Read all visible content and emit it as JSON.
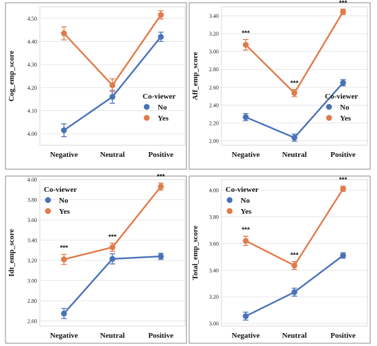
{
  "chart_data": [
    {
      "type": "line",
      "ylabel": "Cog_emp_score",
      "categories": [
        "Negative",
        "Neutral",
        "Positive"
      ],
      "ylim": [
        3.95,
        4.55
      ],
      "yticks": [
        "4.00",
        "4.10",
        "4.20",
        "4.30",
        "4.40",
        "4.50"
      ],
      "legend": {
        "title": "Co-viewer",
        "placement": "lower-right"
      },
      "series": [
        {
          "name": "No",
          "color": "#4a72b8",
          "values": [
            4.015,
            4.16,
            4.42
          ],
          "errors": [
            0.028,
            0.028,
            0.02
          ]
        },
        {
          "name": "Yes",
          "color": "#e07b4a",
          "values": [
            4.435,
            4.21,
            4.515
          ],
          "errors": [
            0.028,
            0.028,
            0.018
          ]
        }
      ],
      "annotations": []
    },
    {
      "type": "line",
      "ylabel": "Aff_emp_score",
      "categories": [
        "Negative",
        "Neutral",
        "Positive"
      ],
      "ylim": [
        1.95,
        3.5
      ],
      "yticks": [
        "2.00",
        "2.20",
        "2.40",
        "2.60",
        "2.80",
        "3.00",
        "3.20",
        "3.40"
      ],
      "legend": {
        "title": "Co-viewer",
        "placement": "lower-right"
      },
      "series": [
        {
          "name": "No",
          "color": "#4a72b8",
          "values": [
            2.265,
            2.035,
            2.65
          ],
          "errors": [
            0.04,
            0.04,
            0.035
          ]
        },
        {
          "name": "Yes",
          "color": "#e07b4a",
          "values": [
            3.075,
            2.535,
            3.445
          ],
          "errors": [
            0.06,
            0.04,
            0.03
          ]
        }
      ],
      "annotations": [
        "***",
        "***",
        "***"
      ]
    },
    {
      "type": "line",
      "ylabel": "Idt_emp_score",
      "categories": [
        "Negative",
        "Neutral",
        "Positive"
      ],
      "ylim": [
        2.55,
        4.0
      ],
      "yticks": [
        "2.60",
        "2.80",
        "3.00",
        "3.20",
        "3.40",
        "3.60",
        "3.80",
        "4.00"
      ],
      "legend": {
        "title": "Co-viewer",
        "placement": "upper-left"
      },
      "series": [
        {
          "name": "No",
          "color": "#4a72b8",
          "values": [
            2.675,
            3.215,
            3.24
          ],
          "errors": [
            0.05,
            0.05,
            0.03
          ]
        },
        {
          "name": "Yes",
          "color": "#e07b4a",
          "values": [
            3.21,
            3.33,
            3.93
          ],
          "errors": [
            0.05,
            0.04,
            0.035
          ]
        }
      ],
      "annotations": [
        "***",
        "***",
        "***"
      ]
    },
    {
      "type": "line",
      "ylabel": "Total_emp_score",
      "categories": [
        "Negative",
        "Neutral",
        "Positive"
      ],
      "ylim": [
        2.98,
        4.08
      ],
      "yticks": [
        "3.00",
        "3.20",
        "3.40",
        "3.60",
        "3.80",
        "4.00"
      ],
      "legend": {
        "title": "Co-viewer",
        "placement": "upper-left"
      },
      "series": [
        {
          "name": "No",
          "color": "#4a72b8",
          "values": [
            3.055,
            3.235,
            3.51
          ],
          "errors": [
            0.03,
            0.03,
            0.02
          ]
        },
        {
          "name": "Yes",
          "color": "#e07b4a",
          "values": [
            3.62,
            3.435,
            4.01
          ],
          "errors": [
            0.035,
            0.03,
            0.02
          ]
        }
      ],
      "annotations": [
        "***",
        "***",
        "***"
      ]
    }
  ]
}
